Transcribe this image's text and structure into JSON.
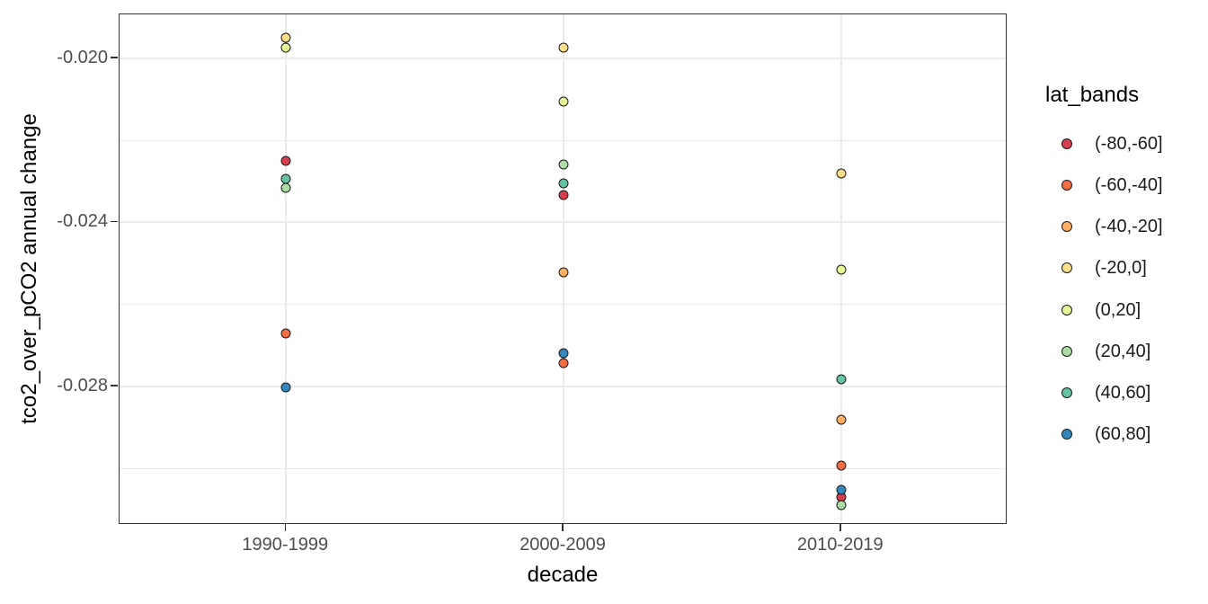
{
  "chart_data": {
    "type": "scatter",
    "title": "",
    "xlabel": "decade",
    "ylabel": "tco2_over_pCO2 annual change",
    "categories": [
      "1990-1999",
      "2000-2009",
      "2010-2019"
    ],
    "ylim": [
      -0.03138,
      -0.01893
    ],
    "y_axis": {
      "major_ticks": [
        {
          "value": -0.02,
          "label": "-0.020"
        },
        {
          "value": -0.024,
          "label": "-0.024"
        },
        {
          "value": -0.028,
          "label": "-0.028"
        }
      ],
      "minor_ticks": [
        -0.022,
        -0.026,
        -0.03
      ]
    },
    "grid": {
      "horizontal": true,
      "vertical_at_categories": true,
      "color": "#ebebeb"
    },
    "legend": {
      "title": "lat_bands",
      "position": "right"
    },
    "series": [
      {
        "name": "(-80,-60]",
        "color": "#d53e4f",
        "values": [
          -0.02251,
          -0.02334,
          -0.03071
        ]
      },
      {
        "name": "(-60,-40]",
        "color": "#f46d43",
        "values": [
          -0.02672,
          -0.02744,
          -0.02994
        ]
      },
      {
        "name": "(-40,-20]",
        "color": "#fdae61",
        "values": [
          null,
          -0.02523,
          -0.02882
        ]
      },
      {
        "name": "(-20,0]",
        "color": "#fee08b",
        "values": [
          -0.0195,
          -0.01975,
          -0.02282
        ]
      },
      {
        "name": "(0,20]",
        "color": "#e6f598",
        "values": [
          -0.01975,
          -0.02106,
          -0.02516
        ]
      },
      {
        "name": "(20,40]",
        "color": "#abdda4",
        "values": [
          -0.02317,
          -0.0226,
          -0.0309
        ]
      },
      {
        "name": "(40,60]",
        "color": "#66c2a5",
        "values": [
          -0.02295,
          -0.02304,
          -0.02783
        ]
      },
      {
        "name": "(60,80]",
        "color": "#3288bd",
        "values": [
          -0.02803,
          -0.0272,
          -0.03053
        ]
      }
    ],
    "style": {
      "point_stroke": "#1a1a1a",
      "panel_border": "#333333",
      "tick_color": "#333333",
      "tick_label_color": "#4d4d4d",
      "axis_title_color": "#000000",
      "background": "#ffffff"
    }
  }
}
